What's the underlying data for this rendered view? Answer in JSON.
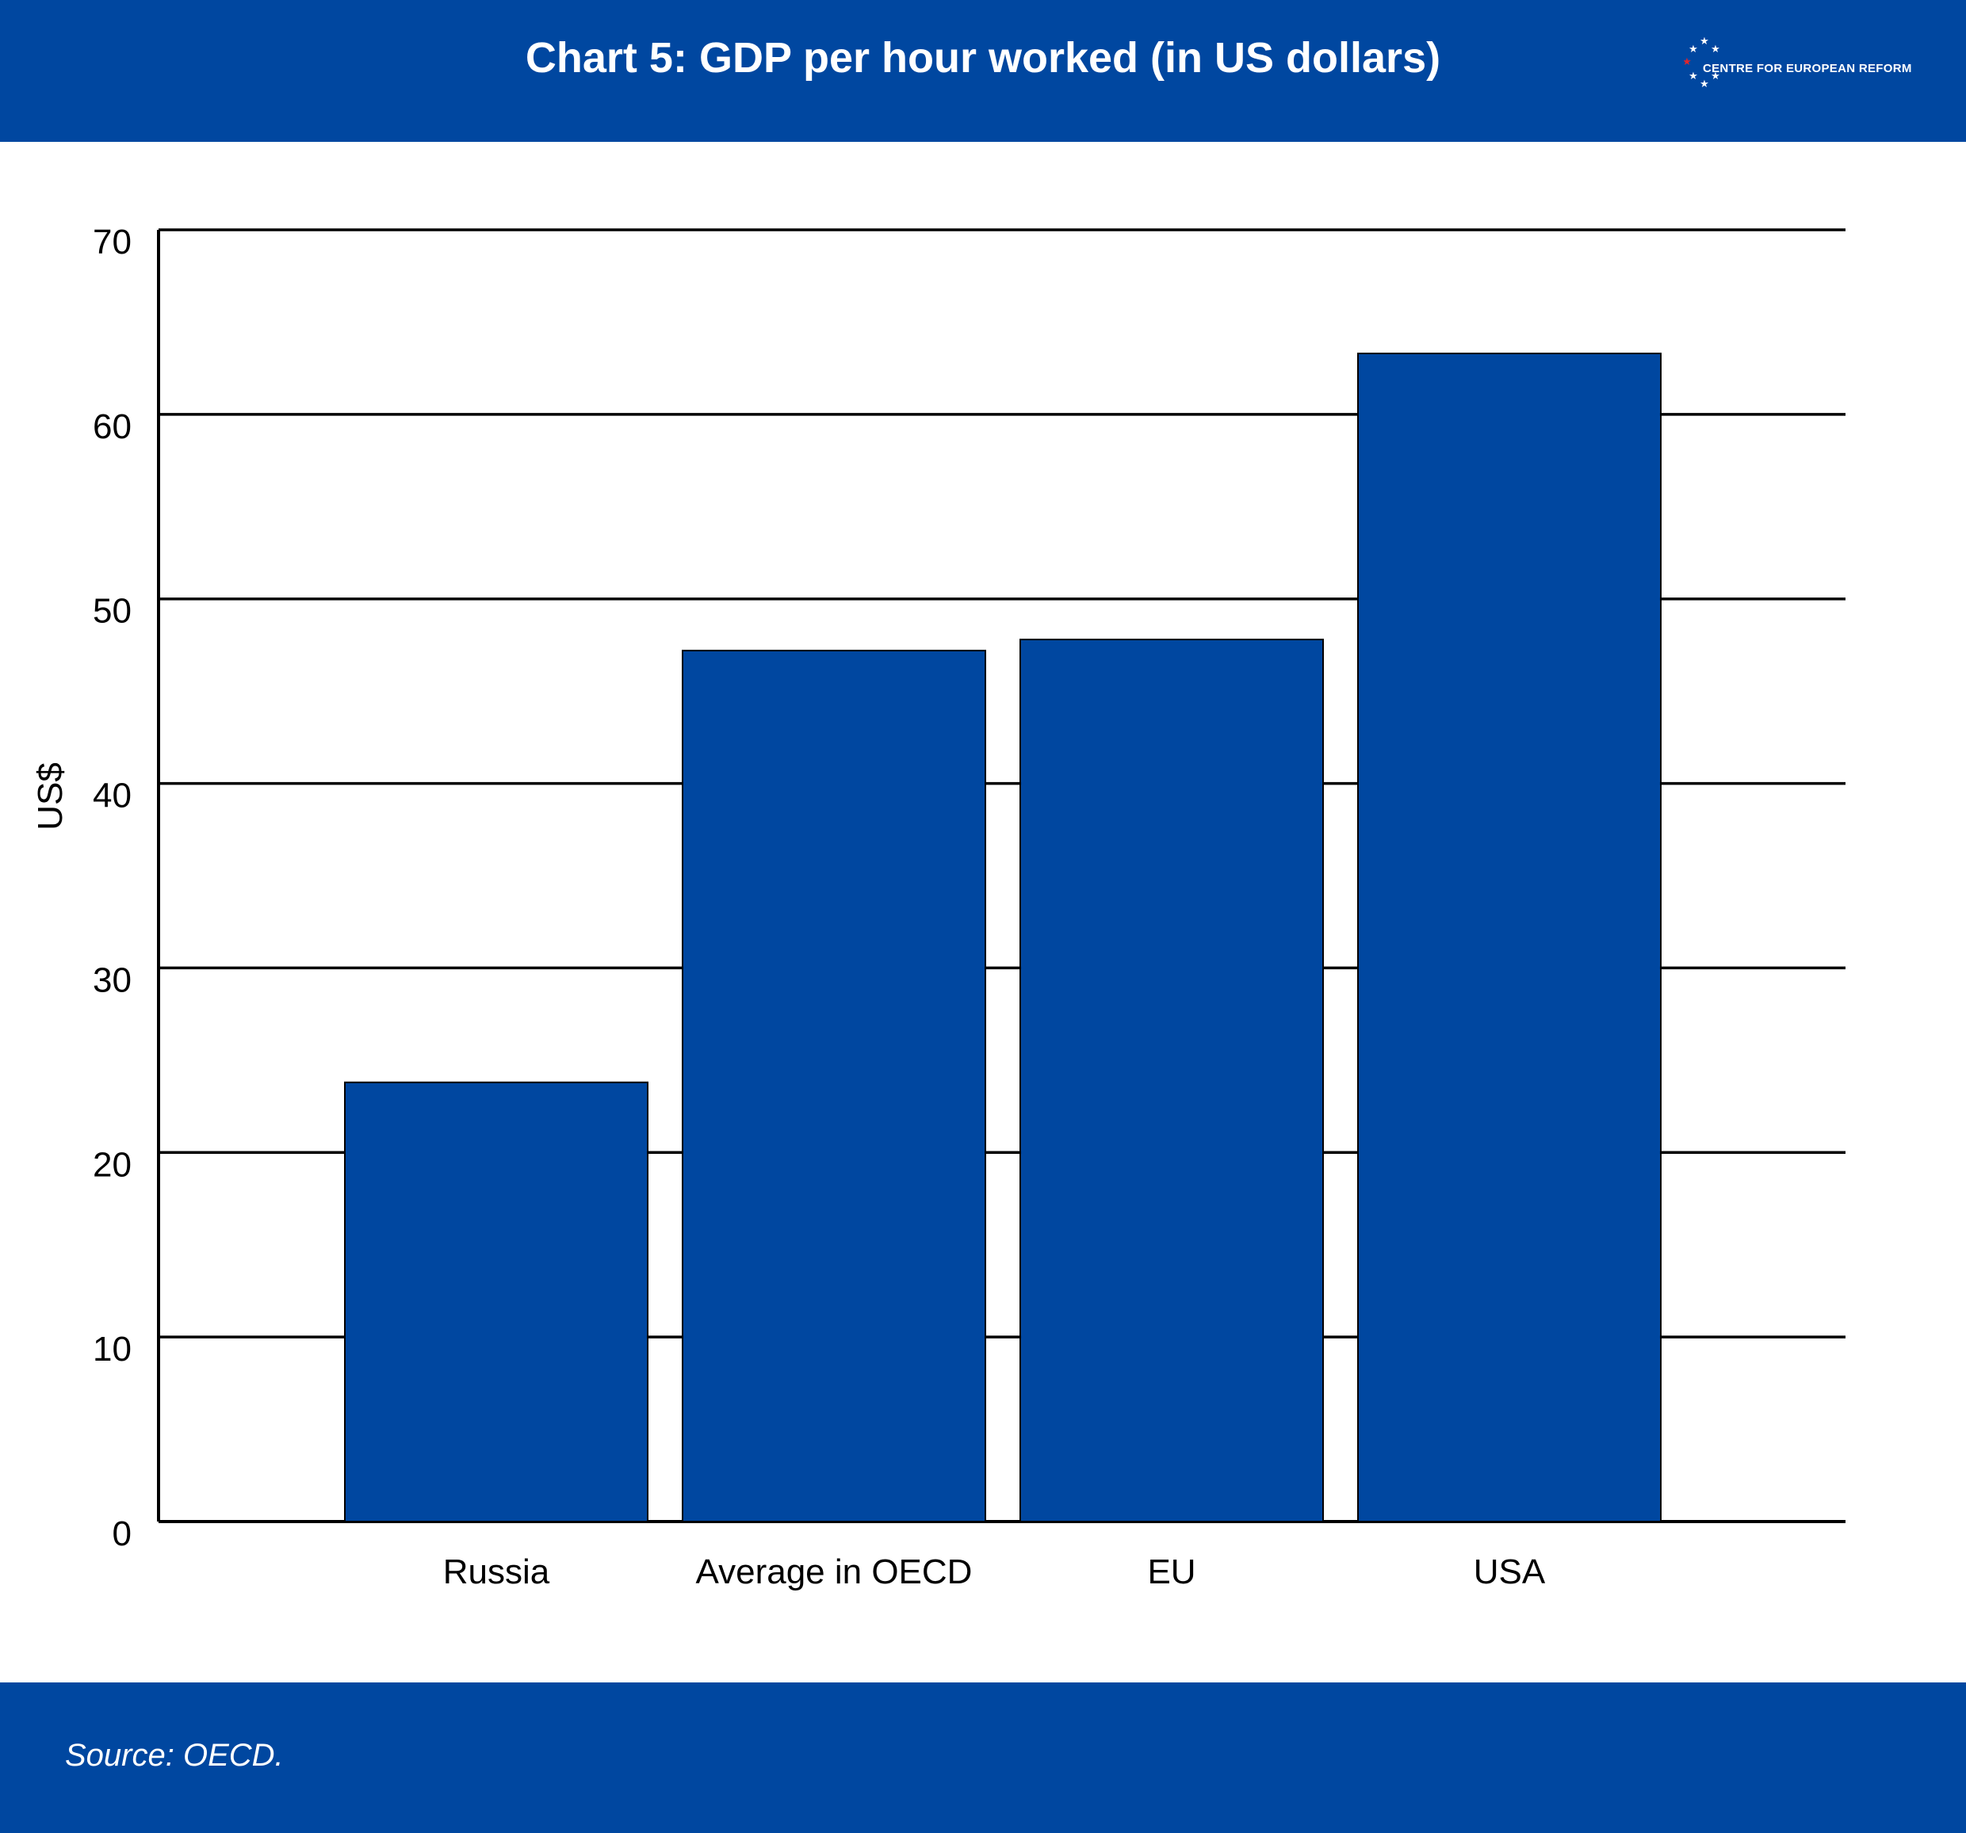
{
  "header": {
    "title": "Chart 5: GDP per hour worked (in US dollars)",
    "logo_text": "CENTRE FOR EUROPEAN REFORM"
  },
  "footer": {
    "source": "Source: OECD."
  },
  "colors": {
    "brand": "#0047A0",
    "bar": "#0047A0",
    "grid": "#000000",
    "logo_star_accent": "#E0262B"
  },
  "chart_data": {
    "type": "bar",
    "title": "Chart 5: GDP per hour worked (in US dollars)",
    "ylabel": "US$",
    "xlabel": "",
    "categories": [
      "Russia",
      "Average in OECD",
      "EU",
      "USA"
    ],
    "values": [
      23.8,
      47.2,
      47.8,
      63.3
    ],
    "ylim": [
      0,
      70
    ],
    "yticks": [
      0,
      10,
      20,
      30,
      40,
      50,
      60,
      70
    ],
    "grid": true,
    "legend": "none"
  }
}
